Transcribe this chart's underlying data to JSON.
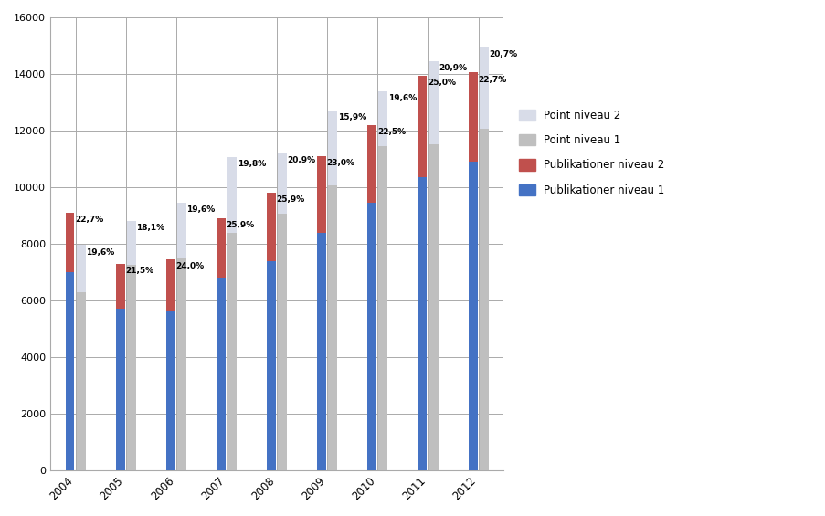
{
  "years": [
    2004,
    2005,
    2006,
    2007,
    2008,
    2009,
    2010,
    2011,
    2012
  ],
  "pub_niveau1": [
    7000,
    5700,
    5600,
    6800,
    7400,
    8400,
    9450,
    10350,
    10900
  ],
  "pub_niveau2": [
    2100,
    1600,
    1850,
    2100,
    2400,
    2700,
    2750,
    3600,
    3150
  ],
  "point_niveau1": [
    6300,
    7250,
    7500,
    8400,
    9050,
    10050,
    11450,
    11500,
    12050
  ],
  "point_niveau2": [
    1650,
    1550,
    1950,
    2650,
    2150,
    2650,
    1950,
    2950,
    2900
  ],
  "percentages_left": [
    "22,7%",
    "21,5%",
    "24,0%",
    "25,9%",
    "25,9%",
    "23,0%",
    "22,5%",
    "25,0%",
    "22,7%"
  ],
  "percentages_right": [
    "19,6%",
    "18,1%",
    "19,6%",
    "19,8%",
    "20,9%",
    "15,9%",
    "19,6%",
    "20,9%",
    "20,7%"
  ],
  "color_pub1": "#4472C4",
  "color_pub2": "#C0504D",
  "color_point1": "#BFBFBF",
  "color_point2": "#D8DCE8",
  "legend_labels": [
    "Point niveau 2",
    "Point niveau 1",
    "Publikationer niveau 2",
    "Publikationer niveau 1"
  ],
  "ylim": [
    0,
    16000
  ],
  "yticks": [
    0,
    2000,
    4000,
    6000,
    8000,
    10000,
    12000,
    14000,
    16000
  ],
  "bar_width": 0.18,
  "bar_gap": 0.22,
  "background_color": "#FFFFFF"
}
